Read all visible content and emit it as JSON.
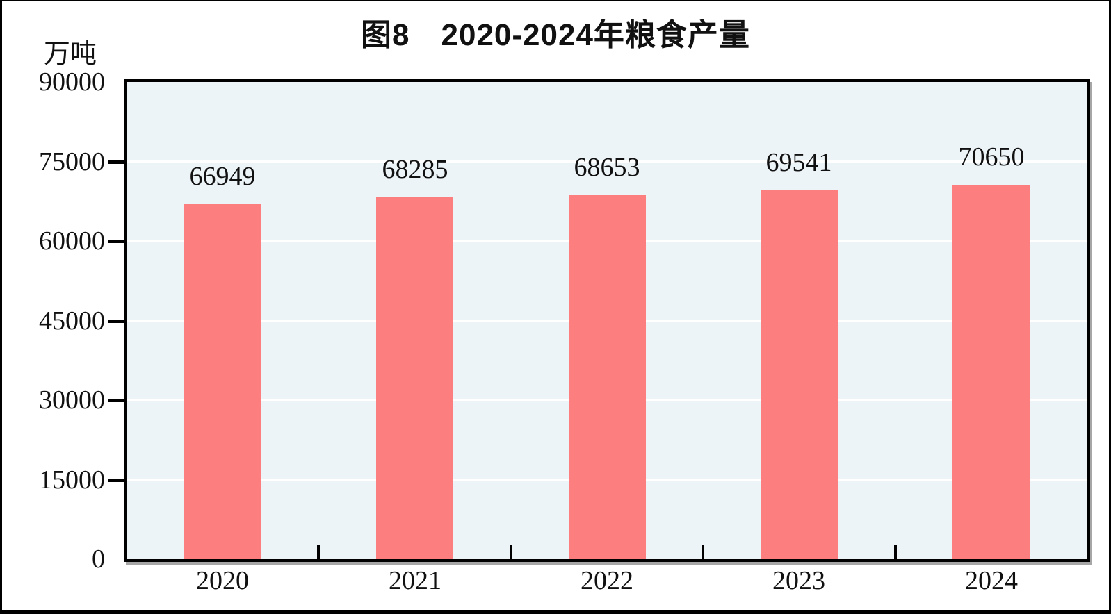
{
  "chart_data": {
    "type": "bar",
    "title": "图8　2020-2024年粮食产量",
    "unit_label": "万吨",
    "categories": [
      "2020",
      "2021",
      "2022",
      "2023",
      "2024"
    ],
    "values": [
      66949,
      68285,
      68653,
      69541,
      70650
    ],
    "xlabel": "",
    "ylabel": "万吨",
    "ylim": [
      0,
      90000
    ],
    "yticks": [
      0,
      15000,
      30000,
      45000,
      60000,
      75000,
      90000
    ],
    "gridline_ticks": [
      15000,
      30000,
      45000,
      60000,
      75000
    ],
    "grid": true,
    "legend_position": "none",
    "data_labels": true
  },
  "colors": {
    "bar_fill": "#FC7E7E",
    "plot_background": "#EDF4F7",
    "grid_line": "#FFFFFF",
    "axis_line": "#000000",
    "text": "#111111",
    "page_background": "#FFFFFF",
    "page_border": "#000000"
  }
}
